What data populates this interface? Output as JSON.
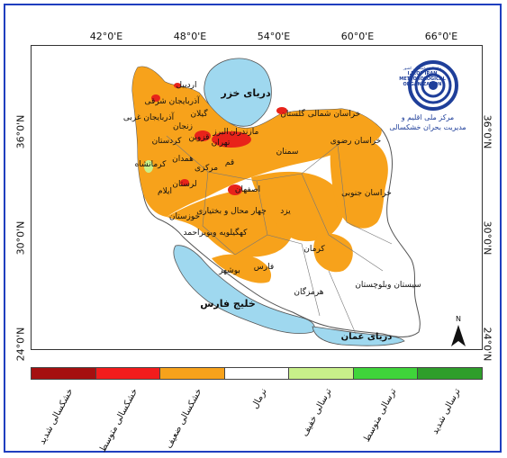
{
  "map": {
    "lon_ticks": [
      "42°0'E",
      "48°0'E",
      "54°0'E",
      "60°0'E",
      "66°0'E"
    ],
    "lat_ticks": [
      "36°0'N",
      "30°0'N",
      "24°0'N"
    ],
    "water_labels": {
      "caspian": "دریای خزر",
      "persian_gulf": "خلیج فارس",
      "oman_sea": "دریای عمان"
    },
    "province_labels": [
      "اردبیل",
      "آذربایجان شرقی",
      "آذربایجان غربی",
      "گیلان",
      "زنجان",
      "مازندران",
      "البرز",
      "کردستان",
      "قزوین",
      "تهران",
      "گلستان",
      "خراسان شمالی",
      "کرمانشاه",
      "همدان",
      "قم",
      "مرکزی",
      "سمنان",
      "خراسان رضوی",
      "لرستان",
      "ایلام",
      "اصفهان",
      "خراسان جنوبی",
      "چهار محال و بختیاری",
      "خوزستان",
      "یزد",
      "کهگیلویه وبویراحمد",
      "کرمان",
      "فارس",
      "بوشهر",
      "هرمزگان",
      "سیستان وبلوچستان"
    ],
    "north_arrow": "N",
    "colors": {
      "water": "#9fd8ef",
      "normal": "#ffffff",
      "weak_drought": "#f7a21b",
      "moderate_drought": "#e8231a",
      "severe_drought": "#a50f0f",
      "border": "#555555"
    }
  },
  "logo": {
    "text_line1": "سازمان هواشناسی کشور",
    "text_line2": "I.R.OF IRAN",
    "text_line3": "METEOROLOGICAL",
    "text_line4": "ORGANIZATION",
    "caption_line1": "مرکز ملی اقلیم و",
    "caption_line2": "مدیریت بحران خشکسالی"
  },
  "legend": {
    "classes": [
      {
        "label": "خشکسالی شدید",
        "color": "#a50f0f"
      },
      {
        "label": "خشکسالی متوسط",
        "color": "#f21c1c"
      },
      {
        "label": "خشکسالی ضعیف",
        "color": "#f7a21b"
      },
      {
        "label": "نرمال",
        "color": "#ffffff"
      },
      {
        "label": "ترسالی خفیف",
        "color": "#c8f08a"
      },
      {
        "label": "ترسالی متوسط",
        "color": "#3fd43a"
      },
      {
        "label": "ترسالی شدید",
        "color": "#2e9e2a"
      }
    ]
  }
}
